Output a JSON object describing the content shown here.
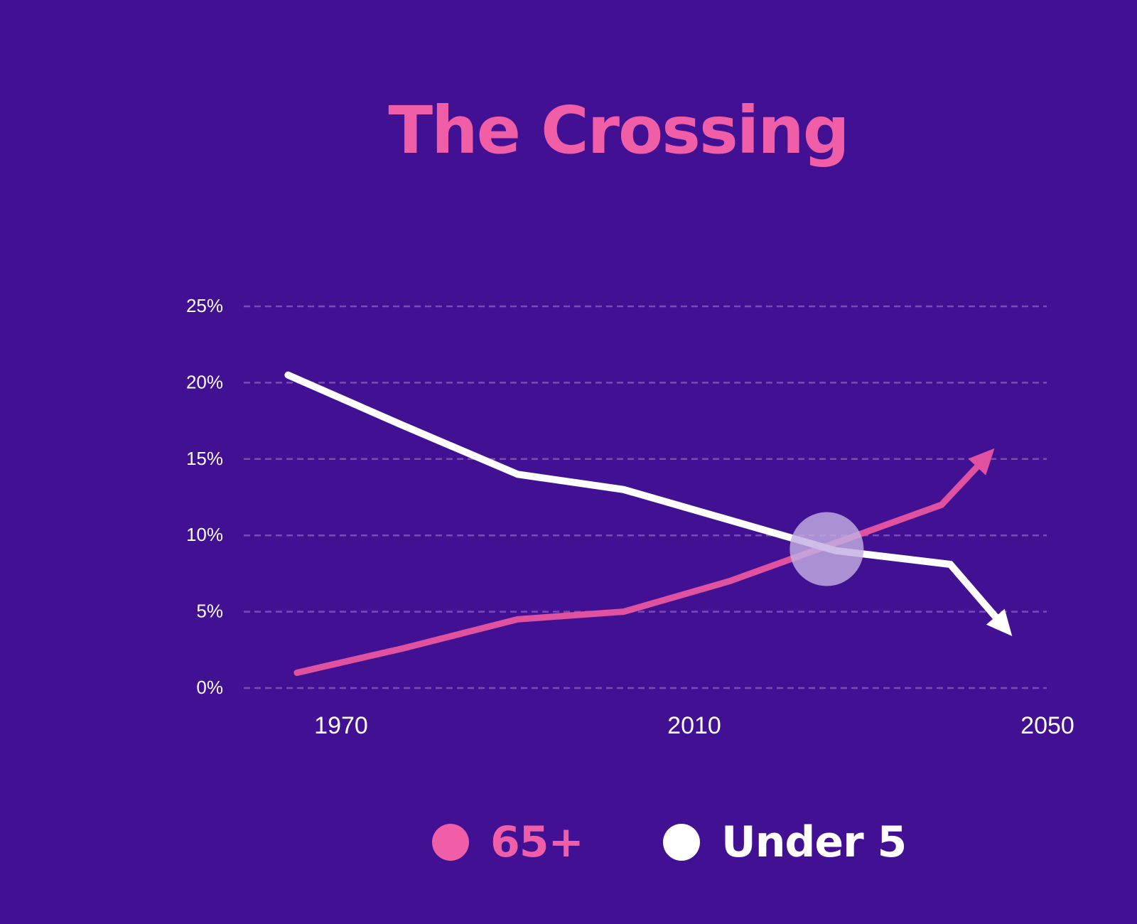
{
  "colors": {
    "background": "#421092",
    "title": "#F05EA8",
    "series_65_plus": "#E0529F",
    "series_under_5": "#FFFFFF",
    "legend_65_plus": "#F05EA8",
    "gridline": "#7C4BB0",
    "highlight": "#C2AEE2"
  },
  "chart_data": {
    "type": "line",
    "title": "The Crossing",
    "xlabel": "",
    "ylabel": "",
    "x_ticks": [
      "1970",
      "2010",
      "2050"
    ],
    "xlim": [
      1964,
      2050
    ],
    "y_ticks": [
      "0%",
      "5%",
      "10%",
      "15%",
      "20%",
      "25%"
    ],
    "ylim": [
      0,
      25
    ],
    "grid": "horizontal dashed",
    "legend_position": "bottom",
    "series": [
      {
        "name": "65+",
        "color": "#E0529F",
        "x": [
          1965,
          1977,
          1990,
          2002,
          2014,
          2038,
          2044
        ],
        "values": [
          1.0,
          2.6,
          4.5,
          5.0,
          7.0,
          12.0,
          15.7
        ],
        "end_arrow": true
      },
      {
        "name": "Under 5",
        "color": "#FFFFFF",
        "x": [
          1964,
          1977,
          1990,
          2002,
          2014,
          2026,
          2039,
          2046
        ],
        "values": [
          20.5,
          17.2,
          14.0,
          13.0,
          11.0,
          9.0,
          8.1,
          3.4
        ],
        "end_arrow": true
      }
    ],
    "annotations": [
      {
        "type": "crossing-marker",
        "x": 2025,
        "y": 9.1
      }
    ]
  }
}
